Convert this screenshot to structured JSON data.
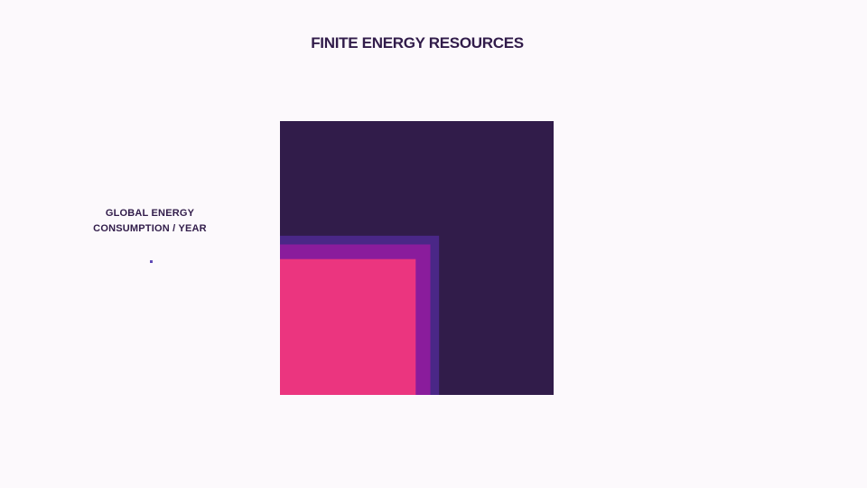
{
  "page": {
    "title": "FINITE ENERGY RESOURCES",
    "label": {
      "line1": "GLOBAL ENERGY",
      "line2": "CONSUMPTION / YEAR"
    }
  },
  "chart_data": {
    "type": "area",
    "title": "FINITE ENERGY RESOURCES",
    "encoding": "nested squares anchored at bottom-left; area proportional to value",
    "unit": "relative area (largest square = 1.0)",
    "series": [
      {
        "values": [
          1.0
        ],
        "color": "#311c4a"
      },
      {
        "values": [
          0.338
        ],
        "color": "#4a2787"
      },
      {
        "values": [
          0.302
        ],
        "color": "#8a1c9c"
      },
      {
        "values": [
          0.246
        ],
        "color": "#eb357f"
      }
    ],
    "reference": {
      "label": "GLOBAL ENERGY CONSUMPTION / YEAR",
      "value": 0.0001,
      "color": "#5f4ab5"
    }
  }
}
